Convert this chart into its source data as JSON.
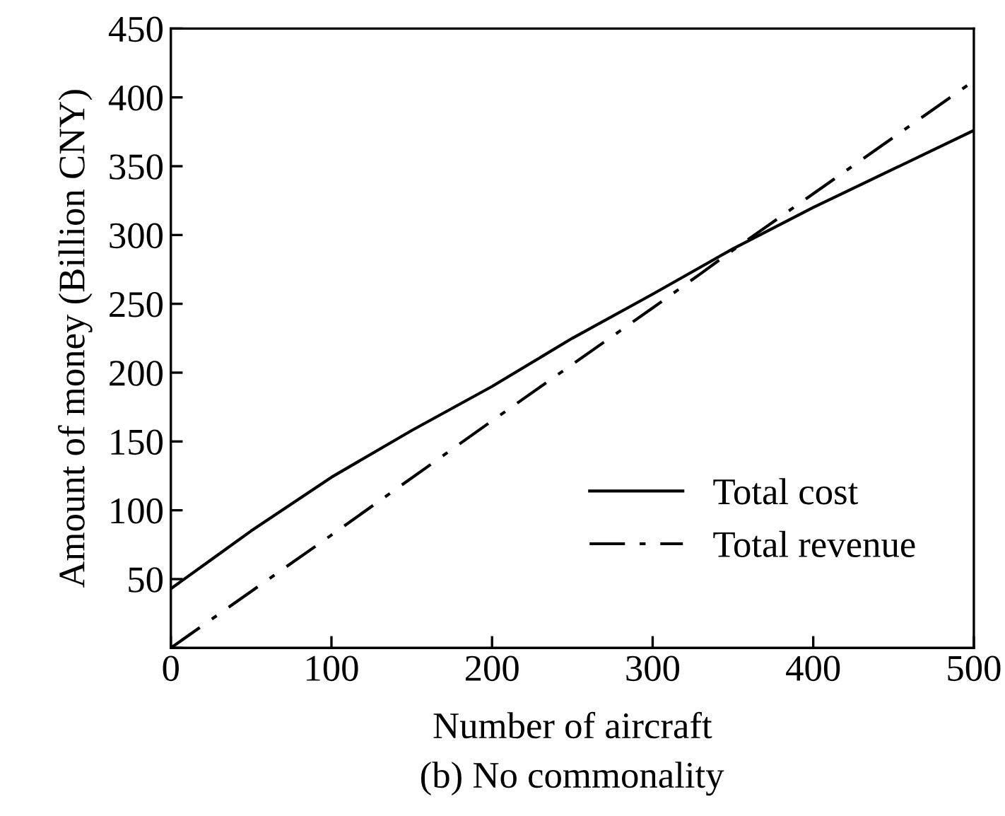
{
  "chart_data": {
    "type": "line",
    "xlabel": "Number of aircraft",
    "ylabel": "Amount of money (Billion CNY)",
    "annotations": [
      "(b) No commonality"
    ],
    "series": [
      {
        "name": "Total cost",
        "color": "#000000",
        "line_style": "solid",
        "x": [
          0,
          25,
          50,
          100,
          150,
          200,
          250,
          300,
          350,
          400,
          450,
          500
        ],
        "values": [
          43,
          64,
          85,
          124,
          158,
          190,
          225,
          257,
          290,
          320,
          348,
          376
        ]
      },
      {
        "name": "Total revenue",
        "color": "#000000",
        "line_style": "dashdot",
        "x": [
          0,
          100,
          200,
          300,
          330,
          350,
          400,
          450,
          500
        ],
        "values": [
          0,
          82,
          165,
          247,
          272,
          289,
          330,
          371,
          412
        ]
      }
    ],
    "xlim": [
      0,
      500
    ],
    "ylim": [
      0,
      450
    ],
    "xticks": [
      0,
      100,
      200,
      300,
      400,
      500
    ],
    "yticks": [
      {
        "value": 0,
        "label": null
      },
      50,
      100,
      150,
      200,
      250,
      300,
      350,
      400,
      450
    ],
    "grid": false,
    "legend": "bottom right",
    "marker": "none"
  }
}
